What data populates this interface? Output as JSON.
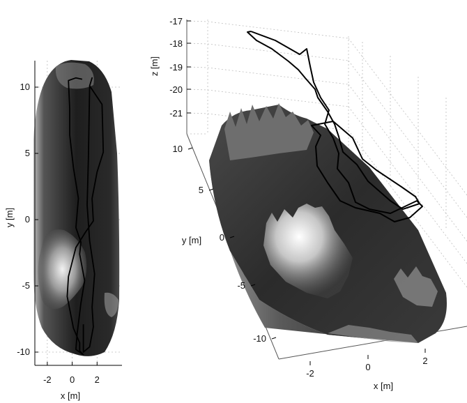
{
  "chart_data": [
    {
      "type": "surface-topview",
      "view": "top",
      "xlabel": "x [m]",
      "ylabel": "y [m]",
      "xlim": [
        -3,
        4
      ],
      "ylim": [
        -11,
        12
      ],
      "xticks": [
        "-2",
        "0",
        "2"
      ],
      "yticks": [
        "10",
        "5",
        "0",
        "-5",
        "-10"
      ],
      "grid": true,
      "trajectory": {
        "color": "#000000",
        "x": [
          0.8,
          0.3,
          -0.3,
          -0.2,
          -0.2,
          0.1,
          0.5,
          0.3,
          0.7,
          0.6,
          1.0,
          0.7,
          0.4,
          0.3,
          0.9,
          0.6,
          0.6,
          0.1,
          -0.4,
          -0.3,
          0.3,
          1.1,
          1.7,
          1.6,
          2.0,
          2.5,
          2.4,
          1.4,
          1.6,
          1.4,
          1.3,
          1.2,
          1.4,
          1.8,
          1.6,
          1.7,
          1.4,
          0.9,
          0.9
        ],
        "y": [
          10.6,
          10.7,
          10.5,
          8.4,
          6.4,
          3.9,
          1.6,
          -0.6,
          -1.7,
          -2.6,
          -4.6,
          -6.3,
          -8.6,
          -9.8,
          -10.2,
          -9.9,
          -9.3,
          -8.2,
          -5.8,
          -4.3,
          -2.1,
          -0.9,
          -0.1,
          1.6,
          3.6,
          5.1,
          8.7,
          10.1,
          10.7,
          10.1,
          4.6,
          1.1,
          -1.6,
          -4.1,
          -6.6,
          -8.1,
          -9.6,
          -10.0,
          -7.9
        ]
      }
    },
    {
      "type": "surface3d",
      "view": "perspective",
      "xlabel": "x [m]",
      "ylabel": "y [m]",
      "zlabel": "z [m]",
      "xticks": [
        "-2",
        "0",
        "2"
      ],
      "yticks": [
        "10",
        "5",
        "0",
        "-5",
        "-10"
      ],
      "zticks": [
        "-17",
        "-18",
        "-19",
        "-20",
        "-21"
      ],
      "zlim": [
        -21,
        -17
      ],
      "grid": true,
      "trajectory": {
        "color": "#000000"
      }
    }
  ]
}
